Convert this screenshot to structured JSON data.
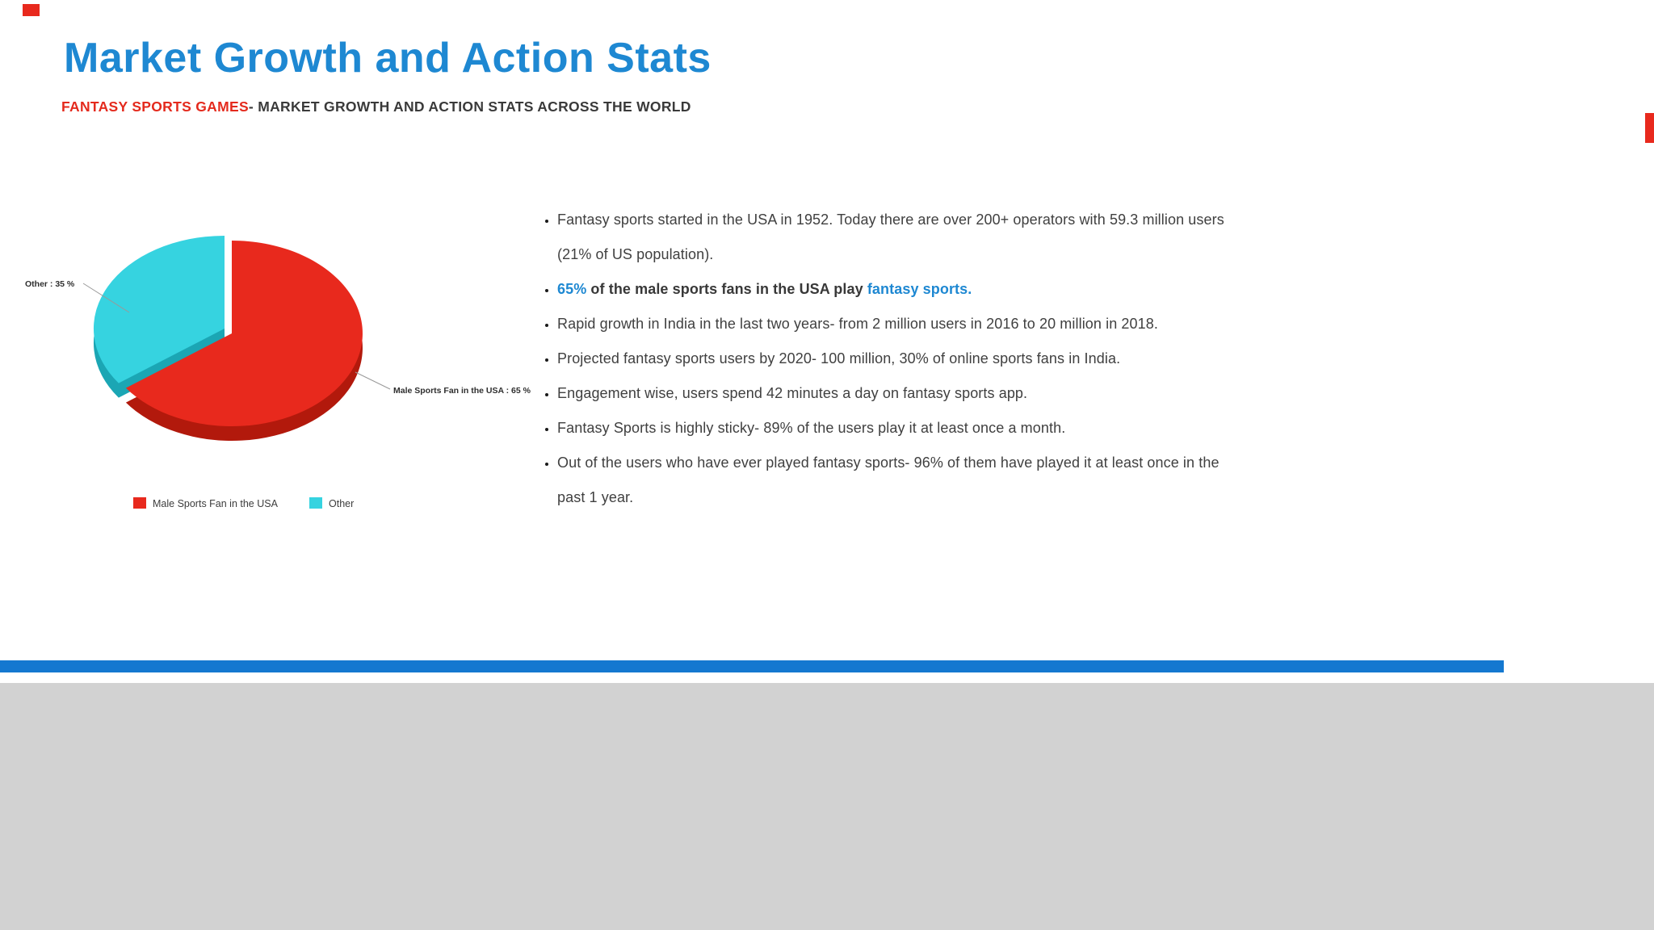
{
  "header": {
    "title": "Market Growth and Action Stats",
    "subtitle_highlight": "FANTASY SPORTS GAMES",
    "subtitle_rest": "- MARKET GROWTH AND ACTION STATS ACROSS THE WORLD"
  },
  "chart_data": {
    "type": "pie",
    "style": "3d-pie",
    "labels": [
      "Male Sports Fan in the USA",
      "Other"
    ],
    "values": [
      65,
      35
    ],
    "unit": "percent",
    "colors": [
      "#e8291d",
      "#36d3e0"
    ],
    "dark_colors": [
      "#b2190c",
      "#1ba6b4"
    ],
    "slice_labels": [
      "Male Sports Fan in the USA : 65 %",
      "Other : 35 %"
    ],
    "legend": [
      "Male Sports Fan in the USA",
      "Other"
    ],
    "legend_position": "bottom"
  },
  "bullets": [
    {
      "segments": [
        {
          "text": "Fantasy sports started in the USA in 1952. Today there are over 200+ operators with 59.3 million users (21% of US population).",
          "style": "normal"
        }
      ]
    },
    {
      "segments": [
        {
          "text": "65%",
          "style": "blue-bold"
        },
        {
          "text": " of the male sports fans in the USA play ",
          "style": "bold"
        },
        {
          "text": "fantasy sports.",
          "style": "link"
        }
      ]
    },
    {
      "segments": [
        {
          "text": "Rapid growth in India in the last two years- from 2 million users in 2016 to 20 million in 2018.",
          "style": "normal"
        }
      ]
    },
    {
      "segments": [
        {
          "text": "Projected fantasy sports users by 2020- 100 million, 30% of online sports fans in India.",
          "style": "normal"
        }
      ]
    },
    {
      "segments": [
        {
          "text": "Engagement wise, users spend 42 minutes a day on fantasy sports app.",
          "style": "normal"
        }
      ]
    },
    {
      "segments": [
        {
          "text": "Fantasy Sports is highly sticky- 89% of the users play it at least once a month.",
          "style": "normal"
        }
      ]
    },
    {
      "segments": [
        {
          "text": "Out of the users who have ever played fantasy sports- 96% of them have played it at least once in the past 1 year.",
          "style": "normal"
        }
      ]
    }
  ],
  "accent_color": "#e8291d",
  "footer": {
    "bar_color": "#1478d0",
    "panel_color": "#d2d2d2"
  }
}
